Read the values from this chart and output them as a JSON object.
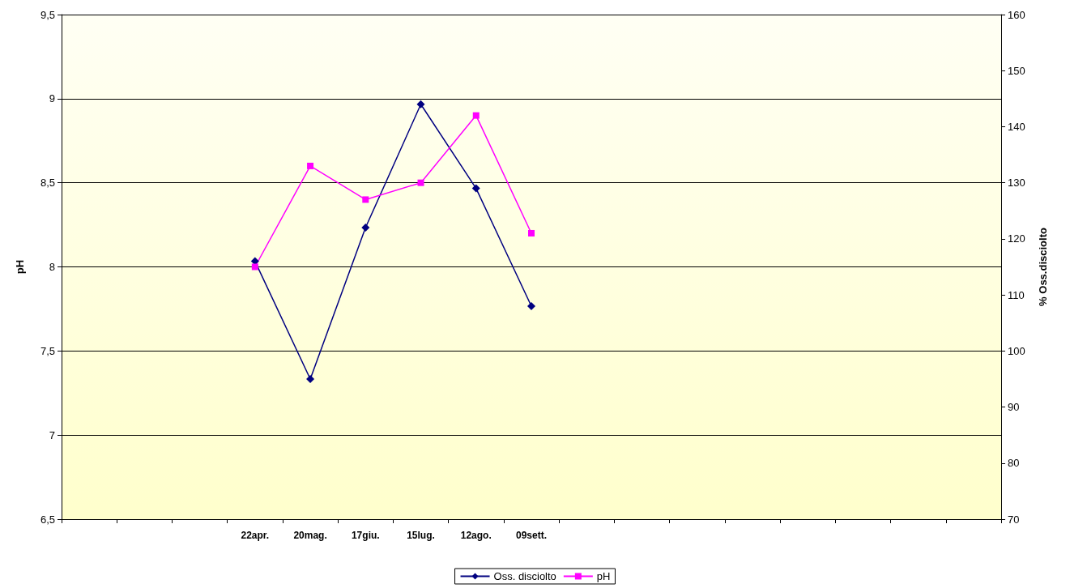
{
  "chart_data": {
    "type": "line",
    "ylabel": "pH",
    "y2label": "% Oss.disciolto",
    "categories": [
      null,
      null,
      null,
      "22apr.",
      "20mag.",
      "17giu.",
      "15lug.",
      "12ago.",
      "09sett.",
      null,
      null,
      null,
      null,
      null,
      null,
      null,
      null
    ],
    "series": [
      {
        "name": "Oss. disciolto",
        "color": "#000080",
        "axis": "y2",
        "marker": "diamond",
        "values": [
          null,
          null,
          null,
          116,
          95,
          122,
          144,
          129,
          108,
          null,
          null,
          null,
          null,
          null,
          null,
          null,
          null
        ]
      },
      {
        "name": "pH",
        "color": "#ff00ff",
        "marker": "square",
        "values": [
          null,
          null,
          null,
          8.0,
          8.6,
          8.4,
          8.5,
          8.9,
          8.2,
          null,
          null,
          null,
          null,
          null,
          null,
          null,
          null
        ]
      }
    ],
    "ylim": [
      6.5,
      9.5
    ],
    "yticks": [
      {
        "value": 6.5,
        "label": "6,5"
      },
      7,
      {
        "value": 7.5,
        "label": "7,5"
      },
      8,
      {
        "value": 8.5,
        "label": "8,5"
      },
      9,
      {
        "value": 9.5,
        "label": "9,5"
      }
    ],
    "y2lim": [
      70,
      160
    ],
    "y2ticks": [
      70,
      80,
      90,
      100,
      110,
      120,
      130,
      140,
      150,
      160
    ],
    "grid": "y",
    "legend": "bottom",
    "line_style": "solid"
  }
}
